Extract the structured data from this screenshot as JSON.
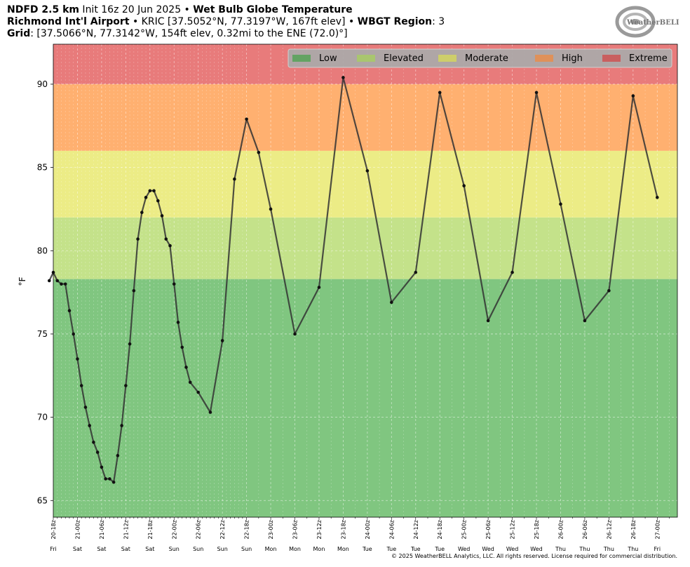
{
  "header": {
    "line1_bold_a": "NDFD 2.5 km",
    "line1_normal": " Init 16z 20 Jun 2025 • ",
    "line1_bold_b": "Wet Bulb Globe Temperature",
    "line2_bold_a": "Richmond Int'l Airport",
    "line2_normal_a": " • KRIC [37.5052°N, 77.3197°W, 167ft elev] • ",
    "line2_bold_b": "WBGT Region",
    "line2_normal_b": ": 3",
    "line3_bold": "Grid",
    "line3_normal": ": [37.5066°N, 77.3142°W, 154ft elev, 0.32mi to the ENE (72.0)°]"
  },
  "logo": {
    "text": "WeatherBELL",
    "icon": "weatherbell-swirl-logo"
  },
  "copyright": "© 2025 WeatherBELL Analytics, LLC. All rights reserved. License required for commercial distribution.",
  "chart_data": {
    "type": "line",
    "title": "Wet Bulb Globe Temperature",
    "ylabel": "°F",
    "xlabel": "",
    "ylim": [
      64,
      92.4
    ],
    "xlim": [
      0,
      155
    ],
    "x_unit": "hours from 20-18z",
    "yticks": [
      65,
      70,
      75,
      80,
      85,
      90
    ],
    "grid": true,
    "legend_position": "top-right",
    "bands": [
      {
        "name": "Low",
        "from": 64,
        "to": 78.3,
        "color": "#80c680",
        "legend_color": "#63a363"
      },
      {
        "name": "Elevated",
        "from": 78.3,
        "to": 82,
        "color": "#c4e28a",
        "legend_color": "#a9c66f"
      },
      {
        "name": "Moderate",
        "from": 82,
        "to": 86,
        "color": "#ecec86",
        "legend_color": "#cece6a"
      },
      {
        "name": "High",
        "from": 86,
        "to": 90,
        "color": "#ffb070",
        "legend_color": "#df915a"
      },
      {
        "name": "Extreme",
        "from": 90,
        "to": 92.4,
        "color": "#e87b7b",
        "legend_color": "#c95f5f"
      }
    ],
    "series": [
      {
        "color": "#333333",
        "points": [
          [
            -1,
            78.2
          ],
          [
            0,
            78.7
          ],
          [
            1,
            78.2
          ],
          [
            2,
            78.0
          ],
          [
            3,
            78.0
          ],
          [
            4,
            76.4
          ],
          [
            5,
            75.0
          ],
          [
            6,
            73.5
          ],
          [
            7,
            71.9
          ],
          [
            8,
            70.6
          ],
          [
            9,
            69.5
          ],
          [
            10,
            68.5
          ],
          [
            11,
            67.9
          ],
          [
            12,
            67.0
          ],
          [
            13,
            66.3
          ],
          [
            14,
            66.3
          ],
          [
            15,
            66.1
          ],
          [
            16,
            67.7
          ],
          [
            17,
            69.5
          ],
          [
            18,
            71.9
          ],
          [
            19,
            74.4
          ],
          [
            20,
            77.6
          ],
          [
            21,
            80.7
          ],
          [
            22,
            82.3
          ],
          [
            23,
            83.2
          ],
          [
            24,
            83.6
          ],
          [
            25,
            83.6
          ],
          [
            26,
            83.0
          ],
          [
            27,
            82.1
          ],
          [
            28,
            80.7
          ],
          [
            29,
            80.3
          ],
          [
            30,
            78.0
          ],
          [
            31,
            75.7
          ],
          [
            32,
            74.2
          ],
          [
            33,
            73.0
          ],
          [
            34,
            72.1
          ],
          [
            36,
            71.5
          ],
          [
            39,
            70.3
          ],
          [
            42,
            74.6
          ],
          [
            45,
            84.3
          ],
          [
            48,
            87.9
          ],
          [
            51,
            85.9
          ],
          [
            54,
            82.5
          ],
          [
            60,
            75.0
          ],
          [
            66,
            77.8
          ],
          [
            72,
            90.4
          ],
          [
            78,
            84.8
          ],
          [
            84,
            76.9
          ],
          [
            90,
            78.7
          ],
          [
            96,
            89.5
          ],
          [
            102,
            83.9
          ],
          [
            108,
            75.8
          ],
          [
            114,
            78.7
          ],
          [
            120,
            89.5
          ],
          [
            126,
            82.8
          ],
          [
            132,
            75.8
          ],
          [
            138,
            77.6
          ],
          [
            144,
            89.3
          ],
          [
            150,
            83.2
          ]
        ]
      }
    ],
    "x_tick_labels": [
      {
        "x": 0,
        "label": "20-18z",
        "day": "Fri"
      },
      {
        "x": 6,
        "label": "21-00z",
        "day": "Sat"
      },
      {
        "x": 12,
        "label": "21-06z",
        "day": "Sat"
      },
      {
        "x": 18,
        "label": "21-12z",
        "day": "Sat"
      },
      {
        "x": 24,
        "label": "21-18z",
        "day": "Sat"
      },
      {
        "x": 30,
        "label": "22-00z",
        "day": "Sun"
      },
      {
        "x": 36,
        "label": "22-06z",
        "day": "Sun"
      },
      {
        "x": 42,
        "label": "22-12z",
        "day": "Sun"
      },
      {
        "x": 48,
        "label": "22-18z",
        "day": "Sun"
      },
      {
        "x": 54,
        "label": "23-00z",
        "day": "Mon"
      },
      {
        "x": 60,
        "label": "23-06z",
        "day": "Mon"
      },
      {
        "x": 66,
        "label": "23-12z",
        "day": "Mon"
      },
      {
        "x": 72,
        "label": "23-18z",
        "day": "Mon"
      },
      {
        "x": 78,
        "label": "24-00z",
        "day": "Tue"
      },
      {
        "x": 84,
        "label": "24-06z",
        "day": "Tue"
      },
      {
        "x": 90,
        "label": "24-12z",
        "day": "Tue"
      },
      {
        "x": 96,
        "label": "24-18z",
        "day": "Tue"
      },
      {
        "x": 102,
        "label": "25-00z",
        "day": "Wed"
      },
      {
        "x": 108,
        "label": "25-06z",
        "day": "Wed"
      },
      {
        "x": 114,
        "label": "25-12z",
        "day": "Wed"
      },
      {
        "x": 120,
        "label": "25-18z",
        "day": "Wed"
      },
      {
        "x": 126,
        "label": "26-00z",
        "day": "Thu"
      },
      {
        "x": 132,
        "label": "26-06z",
        "day": "Thu"
      },
      {
        "x": 138,
        "label": "26-12z",
        "day": "Thu"
      },
      {
        "x": 144,
        "label": "26-18z",
        "day": "Thu"
      },
      {
        "x": 150,
        "label": "27-00z",
        "day": "Fri"
      }
    ]
  }
}
